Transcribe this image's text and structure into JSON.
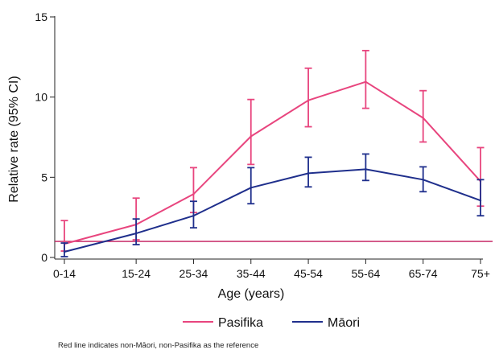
{
  "chart_data": {
    "type": "line",
    "title": "",
    "xlabel": "Age (years)",
    "ylabel": "Relative rate (95% CI)",
    "categories": [
      "0-14",
      "15-24",
      "25-34",
      "35-44",
      "45-54",
      "55-64",
      "65-74",
      "75+"
    ],
    "x": [
      7,
      19.5,
      29.5,
      39.5,
      49.5,
      59.5,
      69.5,
      79.5
    ],
    "xlim": [
      7,
      79.5
    ],
    "ylim": [
      0,
      15
    ],
    "yticks": [
      0,
      5,
      10,
      15
    ],
    "grid": false,
    "legend_position": "bottom",
    "series": [
      {
        "name": "Pasifika",
        "color": "#e8457e",
        "values": [
          0.85,
          2.05,
          3.95,
          7.55,
          9.8,
          10.95,
          8.7,
          4.75
        ],
        "ci_low": [
          0.4,
          1.1,
          2.8,
          5.8,
          8.15,
          9.3,
          7.2,
          3.2
        ],
        "ci_high": [
          2.3,
          3.7,
          5.6,
          9.85,
          11.8,
          12.9,
          10.4,
          6.85
        ]
      },
      {
        "name": "Māori",
        "color": "#1f2f8c",
        "values": [
          0.35,
          1.5,
          2.6,
          4.35,
          5.25,
          5.5,
          4.85,
          3.55
        ],
        "ci_low": [
          0.05,
          0.8,
          1.85,
          3.35,
          4.4,
          4.8,
          4.1,
          2.6
        ],
        "ci_high": [
          0.9,
          2.4,
          3.5,
          5.6,
          6.25,
          6.45,
          5.65,
          4.85
        ]
      }
    ],
    "reference_line": {
      "value": 1,
      "color": "#c2185b"
    },
    "footnote": "Red line indicates non-Māori, non-Pasifika as the reference"
  }
}
